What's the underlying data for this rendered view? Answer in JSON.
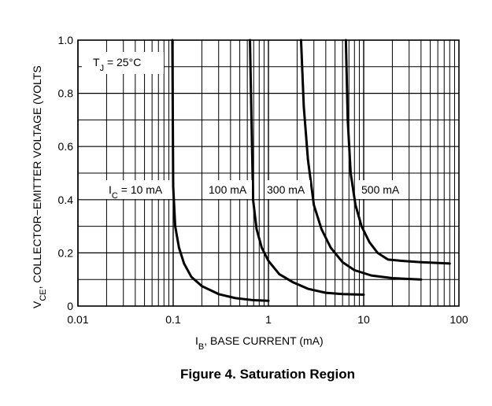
{
  "chart_data": {
    "type": "line",
    "x_scale": "log",
    "xlim": [
      0.01,
      100
    ],
    "ylim": [
      0,
      1.0
    ],
    "grid": true,
    "xlabel": {
      "main": "I",
      "sub": "B",
      "rest": ", BASE CURRENT (mA)"
    },
    "ylabel": {
      "main": "V",
      "sub": "CE",
      "rest": ", COLLECTOR−EMITTER VOLTAGE (VOLTS"
    },
    "x_ticks": [
      {
        "value": 0.01,
        "label": "0.01"
      },
      {
        "value": 0.1,
        "label": "0.1"
      },
      {
        "value": 1,
        "label": "1"
      },
      {
        "value": 10,
        "label": "10"
      },
      {
        "value": 100,
        "label": "100"
      }
    ],
    "y_ticks": [
      {
        "value": 0,
        "label": "0"
      },
      {
        "value": 0.2,
        "label": "0.2"
      },
      {
        "value": 0.4,
        "label": "0.4"
      },
      {
        "value": 0.6,
        "label": "0.6"
      },
      {
        "value": 0.8,
        "label": "0.8"
      },
      {
        "value": 1.0,
        "label": "1.0"
      }
    ],
    "temperature_label": {
      "main": "T",
      "sub": "J",
      "rest": " = 25°C"
    },
    "series_prefix": {
      "main": "I",
      "sub": "C",
      "rest": " = "
    },
    "series": [
      {
        "name": "10 mA",
        "x": [
          0.098,
          0.1,
          0.105,
          0.115,
          0.13,
          0.155,
          0.2,
          0.3,
          0.45,
          0.7,
          1.0
        ],
        "y": [
          1.0,
          0.45,
          0.3,
          0.22,
          0.16,
          0.11,
          0.075,
          0.045,
          0.03,
          0.022,
          0.02
        ]
      },
      {
        "name": "100 mA",
        "x": [
          0.64,
          0.66,
          0.69,
          0.75,
          0.85,
          1.0,
          1.3,
          1.8,
          2.6,
          4.0,
          6.0,
          10.0
        ],
        "y": [
          1.0,
          0.75,
          0.4,
          0.29,
          0.22,
          0.17,
          0.12,
          0.09,
          0.065,
          0.05,
          0.045,
          0.043
        ]
      },
      {
        "name": "300 mA",
        "x": [
          2.2,
          2.35,
          2.6,
          3.0,
          3.6,
          4.5,
          6.0,
          8.0,
          12.0,
          20.0,
          40.0
        ],
        "y": [
          1.0,
          0.75,
          0.55,
          0.38,
          0.29,
          0.22,
          0.165,
          0.135,
          0.115,
          0.105,
          0.1
        ]
      },
      {
        "name": "500 mA",
        "x": [
          6.5,
          6.8,
          7.3,
          8.2,
          9.5,
          11.5,
          14.0,
          18.0,
          25.0,
          40.0,
          80.0
        ],
        "y": [
          1.0,
          0.7,
          0.5,
          0.38,
          0.3,
          0.24,
          0.2,
          0.175,
          0.17,
          0.165,
          0.16
        ]
      }
    ]
  },
  "caption": "Figure 4. Saturation Region"
}
